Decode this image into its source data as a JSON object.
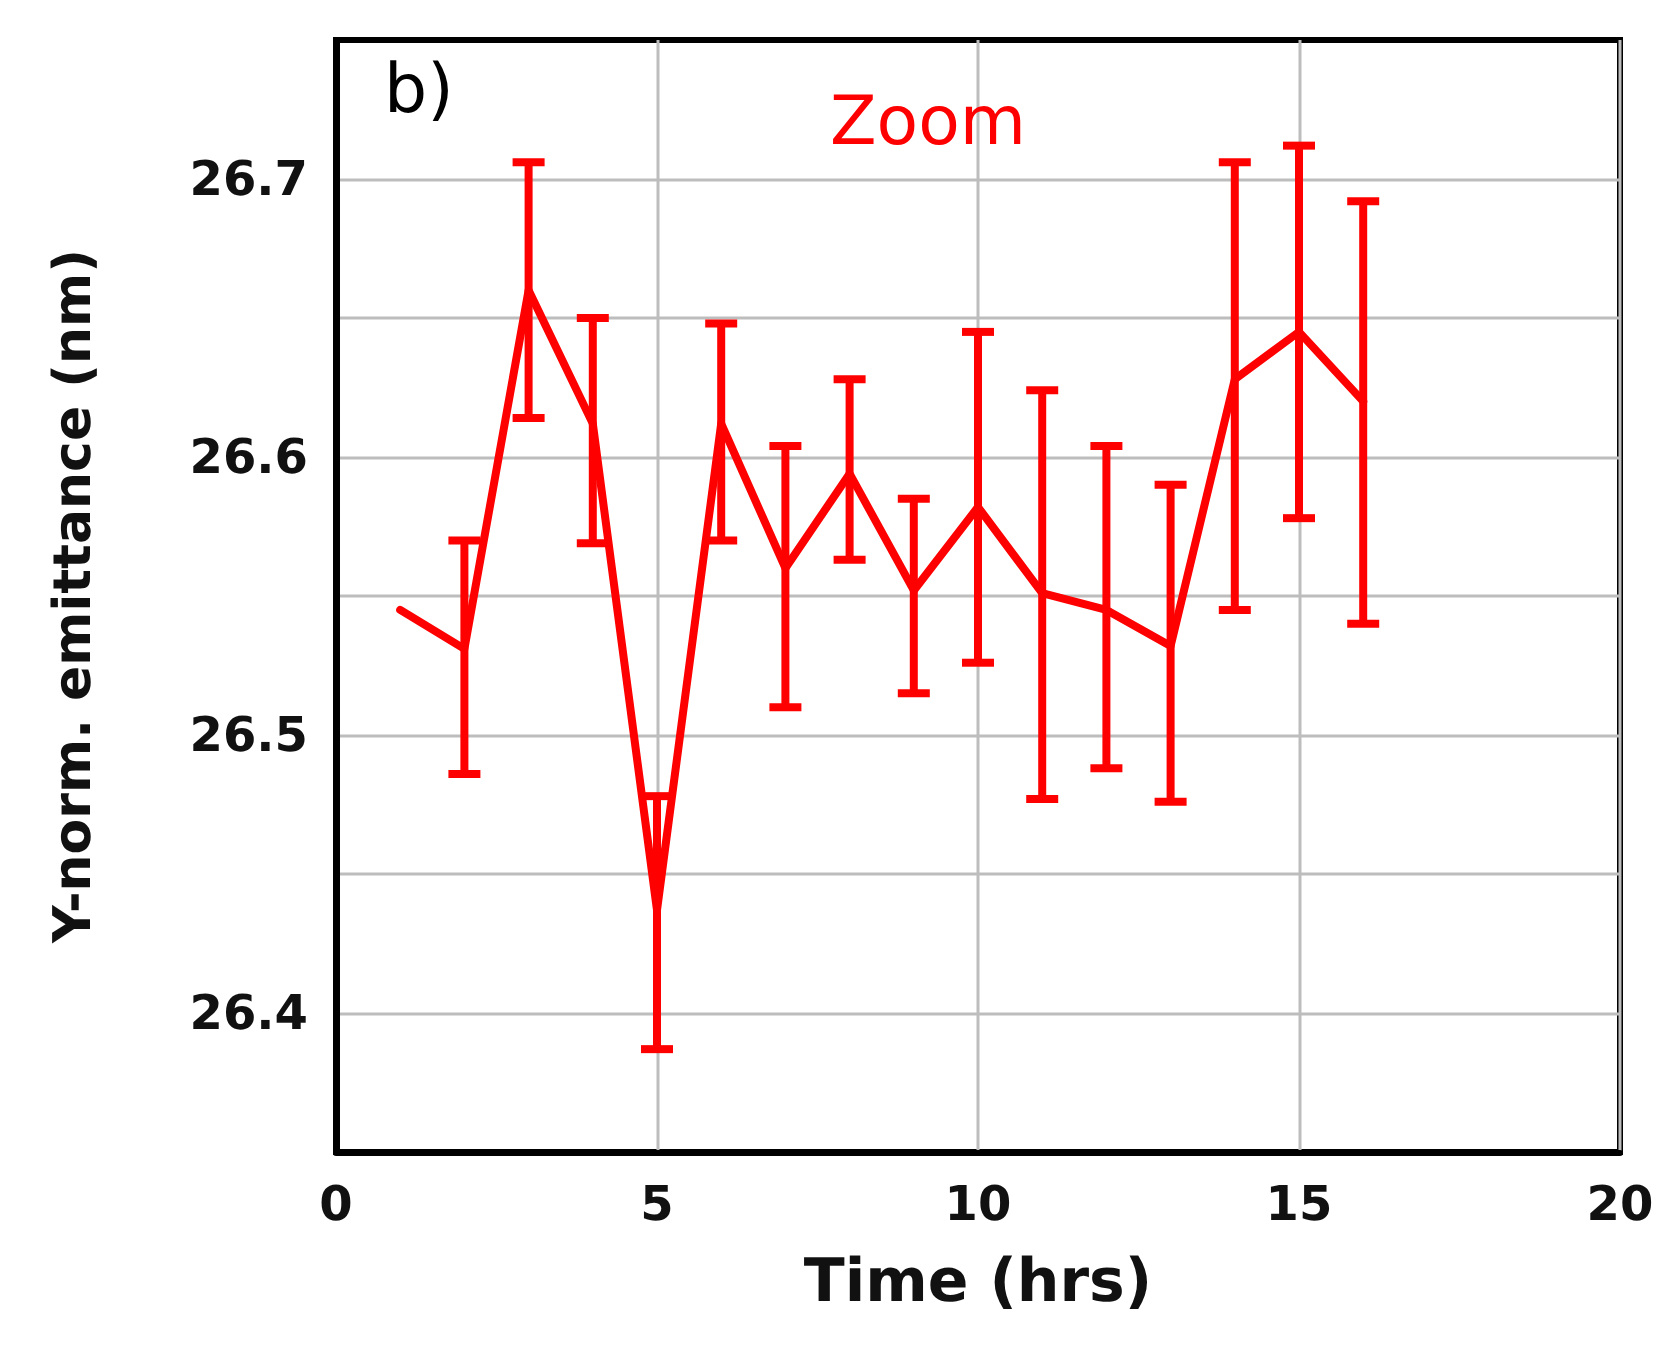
{
  "chart_data": {
    "type": "line",
    "xlabel": "Time (hrs)",
    "ylabel": "Y-norm. emittance (nm)",
    "annotations": [
      "b)",
      "Zoom"
    ],
    "x": [
      1,
      2,
      3,
      4,
      5,
      6,
      7,
      8,
      9,
      10,
      11,
      12,
      13,
      14,
      15,
      16
    ],
    "series": [
      {
        "color": "#ff0000",
        "values": [
          26.545,
          26.531,
          26.66,
          26.612,
          26.437,
          26.612,
          26.56,
          26.594,
          26.552,
          26.582,
          26.551,
          26.545,
          26.532,
          26.628,
          26.645,
          26.62
        ],
        "errors": [
          null,
          [
            26.486,
            26.57
          ],
          [
            26.614,
            26.706
          ],
          [
            26.569,
            26.65
          ],
          [
            26.387,
            26.478
          ],
          [
            26.57,
            26.648
          ],
          [
            26.51,
            26.604
          ],
          [
            26.563,
            26.628
          ],
          [
            26.515,
            26.585
          ],
          [
            26.526,
            26.645
          ],
          [
            26.477,
            26.624
          ],
          [
            26.488,
            26.604
          ],
          [
            26.476,
            26.59
          ],
          [
            26.545,
            26.706
          ],
          [
            26.578,
            26.712
          ],
          [
            26.54,
            26.692
          ]
        ]
      }
    ],
    "xlim": [
      0,
      20
    ],
    "xticks": [
      0,
      5,
      10,
      15,
      20
    ],
    "ylim": [
      26.35,
      26.75
    ],
    "yticks": [
      26.4,
      {
        "value": 26.45,
        "label": null
      },
      26.5,
      {
        "value": 26.55,
        "label": null
      },
      26.6,
      {
        "value": 26.65,
        "label": null
      },
      26.7
    ],
    "grid": true,
    "marker": "none",
    "line_style": "solid"
  }
}
